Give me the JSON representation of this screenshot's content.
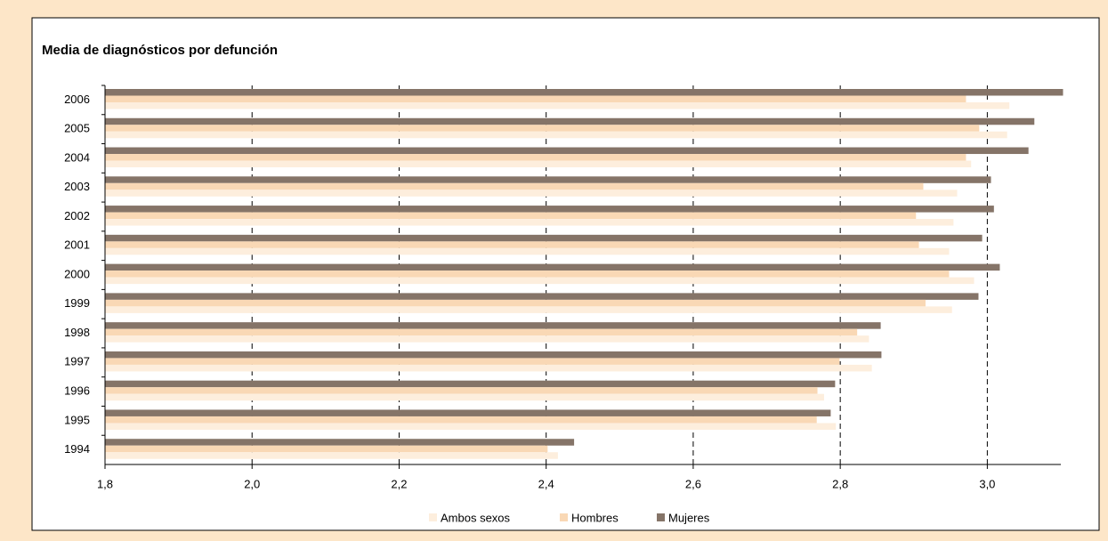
{
  "chart_data": {
    "type": "hbar",
    "title": "Media de diagnósticos por defunción",
    "categories": [
      "2006",
      "2005",
      "2004",
      "2003",
      "2002",
      "2001",
      "2000",
      "1999",
      "1998",
      "1997",
      "1996",
      "1995",
      "1994"
    ],
    "series": [
      {
        "name": "Ambos sexos",
        "color": "#fdeedd",
        "values": [
          3.03,
          3.027,
          2.978,
          2.959,
          2.954,
          2.948,
          2.982,
          2.952,
          2.839,
          2.843,
          2.778,
          2.794,
          2.416
        ]
      },
      {
        "name": "Hombres",
        "color": "#f9d8b5",
        "values": [
          2.971,
          2.989,
          2.971,
          2.913,
          2.903,
          2.907,
          2.948,
          2.916,
          2.823,
          2.799,
          2.769,
          2.768,
          2.402
        ]
      },
      {
        "name": "Mujeres",
        "color": "#857468",
        "values": [
          3.103,
          3.064,
          3.056,
          3.005,
          3.009,
          2.993,
          3.017,
          2.988,
          2.855,
          2.856,
          2.793,
          2.787,
          2.438
        ]
      }
    ],
    "xlim": [
      1.8,
      3.1
    ],
    "xticks": [
      {
        "value": 1.8,
        "label": "1,8"
      },
      {
        "value": 2.0,
        "label": "2,0"
      },
      {
        "value": 2.2,
        "label": "2,2"
      },
      {
        "value": 2.4,
        "label": "2,4"
      },
      {
        "value": 2.6,
        "label": "2,6"
      },
      {
        "value": 2.8,
        "label": "2,8"
      },
      {
        "value": 3.0,
        "label": "3,0"
      }
    ],
    "grid": true,
    "legend": "bottom"
  }
}
